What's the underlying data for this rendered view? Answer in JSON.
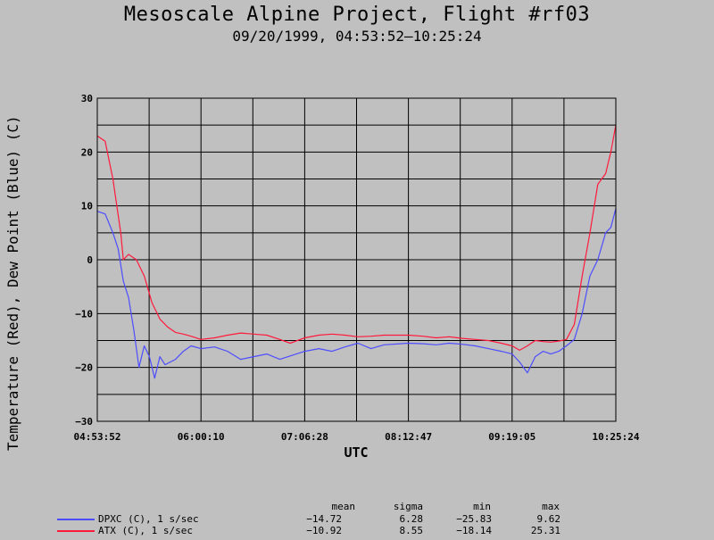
{
  "title": "Mesoscale Alpine Project, Flight #rf03",
  "subtitle": "09/20/1999, 04:53:52–10:25:24",
  "colors": {
    "background": "#c0c0c0",
    "dewpoint": "#4d4dff",
    "temperature": "#ff1a3c",
    "grid": "#000000"
  },
  "stats_headers": {
    "mean": "mean",
    "sigma": "sigma",
    "min": "min",
    "max": "max"
  },
  "legend": [
    {
      "label": "DPXC (C), 1 s/sec",
      "color": "#4d4dff",
      "mean": "−14.72",
      "sigma": "6.28",
      "min": "−25.83",
      "max": "9.62"
    },
    {
      "label": "ATX (C), 1 s/sec",
      "color": "#ff1a3c",
      "mean": "−10.92",
      "sigma": "8.55",
      "min": "−18.14",
      "max": "25.31"
    }
  ],
  "chart_data": {
    "type": "line",
    "title": "Mesoscale Alpine Project, Flight #rf03",
    "subtitle": "09/20/1999, 04:53:52–10:25:24",
    "xlabel": "UTC",
    "ylabel": "Temperature (Red), Dew Point (Blue) (C)",
    "x_tick_labels": [
      "04:53:52",
      "06:00:10",
      "07:06:28",
      "08:12:47",
      "09:19:05",
      "10:25:24"
    ],
    "x_range_seconds": [
      0,
      19892
    ],
    "x_ticks_seconds": [
      0,
      3978,
      7956,
      11935,
      15913,
      19892
    ],
    "y_ticks": [
      30,
      20,
      10,
      0,
      -10,
      -20,
      -30
    ],
    "ylim": [
      -30,
      30
    ],
    "x_minor_divisions": 10,
    "y_minor_divisions": 12,
    "grid": true,
    "series": [
      {
        "name": "ATX (C), 1 s/sec",
        "color": "#ff1a3c",
        "x": [
          0,
          300,
          600,
          900,
          1000,
          1200,
          1500,
          1800,
          2100,
          2400,
          2700,
          3000,
          3300,
          3600,
          3978,
          4500,
          5000,
          5500,
          6000,
          6500,
          7000,
          7400,
          7956,
          8500,
          9000,
          9500,
          10000,
          10500,
          11000,
          11935,
          12500,
          13000,
          13500,
          14000,
          14500,
          15000,
          15500,
          15913,
          16200,
          16500,
          16800,
          17100,
          17400,
          17700,
          18000,
          18300,
          18600,
          18900,
          19200,
          19500,
          19700,
          19892
        ],
        "y": [
          23,
          22,
          15,
          5,
          0,
          1,
          0,
          -3,
          -8,
          -11,
          -12.5,
          -13.5,
          -13.8,
          -14.2,
          -14.8,
          -14.5,
          -14,
          -13.6,
          -13.8,
          -14,
          -14.8,
          -15.5,
          -14.5,
          -14,
          -13.8,
          -14,
          -14.3,
          -14.2,
          -14,
          -14,
          -14.2,
          -14.5,
          -14.3,
          -14.6,
          -14.8,
          -15,
          -15.5,
          -16,
          -16.8,
          -16,
          -15,
          -15.2,
          -15.3,
          -15.1,
          -14.8,
          -12,
          -3,
          5,
          14,
          16,
          20,
          25
        ]
      },
      {
        "name": "DPXC (C), 1 s/sec",
        "color": "#4d4dff",
        "x": [
          0,
          300,
          600,
          800,
          1000,
          1200,
          1400,
          1600,
          1800,
          2000,
          2200,
          2400,
          2600,
          2800,
          3000,
          3300,
          3600,
          3978,
          4500,
          5000,
          5500,
          6000,
          6500,
          7000,
          7956,
          8500,
          9000,
          9500,
          10000,
          10500,
          11000,
          11935,
          12500,
          13000,
          13500,
          14000,
          14500,
          15000,
          15500,
          15913,
          16200,
          16500,
          16800,
          17100,
          17400,
          17700,
          18000,
          18300,
          18600,
          18900,
          19200,
          19500,
          19700,
          19892
        ],
        "y": [
          9,
          8.5,
          5,
          2,
          -4,
          -7,
          -13,
          -20,
          -16,
          -18,
          -22,
          -18,
          -19.5,
          -19,
          -18.5,
          -17,
          -16,
          -16.5,
          -16.2,
          -17,
          -18.5,
          -18,
          -17.5,
          -18.5,
          -17,
          -16.5,
          -17,
          -16.2,
          -15.5,
          -16.5,
          -15.8,
          -15.5,
          -15.6,
          -15.8,
          -15.5,
          -15.7,
          -16,
          -16.5,
          -17,
          -17.5,
          -19,
          -21,
          -18,
          -17,
          -17.5,
          -17,
          -16,
          -14.8,
          -10,
          -3,
          0,
          5,
          6,
          9.5
        ]
      }
    ]
  }
}
